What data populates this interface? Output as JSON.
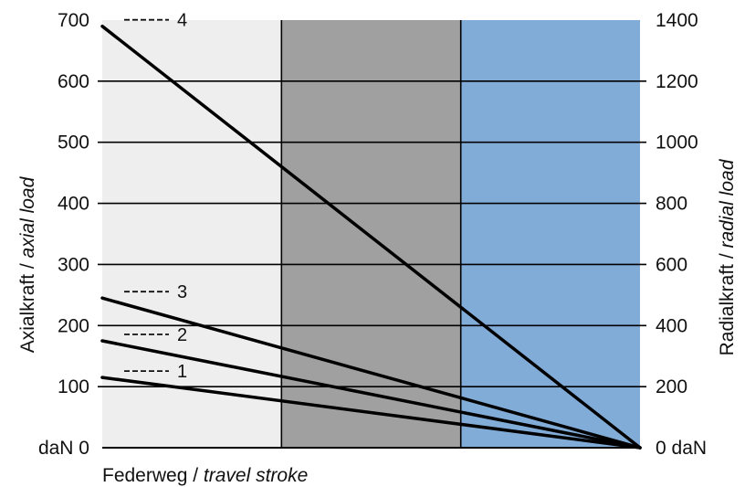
{
  "chart_data": {
    "type": "line",
    "title": "",
    "xlabel": {
      "main": "Federweg / ",
      "italic": "travel stroke"
    },
    "ylabel_left": {
      "main": "Axialkraft / ",
      "italic": "axial load"
    },
    "ylabel_right": {
      "main": "Radialkraft / ",
      "italic": "radial load"
    },
    "ylim_left": [
      0,
      700
    ],
    "ylim_right": [
      0,
      1400
    ],
    "xlim": [
      0,
      1
    ],
    "left_ticks": [
      {
        "value": 0,
        "label": "daN 0"
      },
      {
        "value": 100,
        "label": "100"
      },
      {
        "value": 200,
        "label": "200"
      },
      {
        "value": 300,
        "label": "300"
      },
      {
        "value": 400,
        "label": "400"
      },
      {
        "value": 500,
        "label": "500"
      },
      {
        "value": 600,
        "label": "600"
      },
      {
        "value": 700,
        "label": "700"
      }
    ],
    "right_ticks": [
      {
        "value": 0,
        "label": "0 daN"
      },
      {
        "value": 200,
        "label": "200"
      },
      {
        "value": 400,
        "label": "400"
      },
      {
        "value": 600,
        "label": "600"
      },
      {
        "value": 800,
        "label": "800"
      },
      {
        "value": 1000,
        "label": "1000"
      },
      {
        "value": 1200,
        "label": "1200"
      },
      {
        "value": 1400,
        "label": "1400"
      }
    ],
    "grid": true,
    "zones": [
      {
        "from": 0,
        "to": 0.3333,
        "color": "#eeeeee"
      },
      {
        "from": 0.3333,
        "to": 0.6667,
        "color": "#a0a0a0"
      },
      {
        "from": 0.6667,
        "to": 1,
        "color": "#82acd8"
      }
    ],
    "series": [
      {
        "label": "1",
        "x": [
          0,
          1
        ],
        "y": [
          115,
          0
        ]
      },
      {
        "label": "2",
        "x": [
          0,
          1
        ],
        "y": [
          175,
          0
        ]
      },
      {
        "label": "3",
        "x": [
          0,
          1
        ],
        "y": [
          245,
          0
        ]
      },
      {
        "label": "4",
        "x": [
          0,
          1
        ],
        "y": [
          690,
          0
        ]
      }
    ],
    "line_color": "#000000",
    "grid_color": "#000000"
  }
}
